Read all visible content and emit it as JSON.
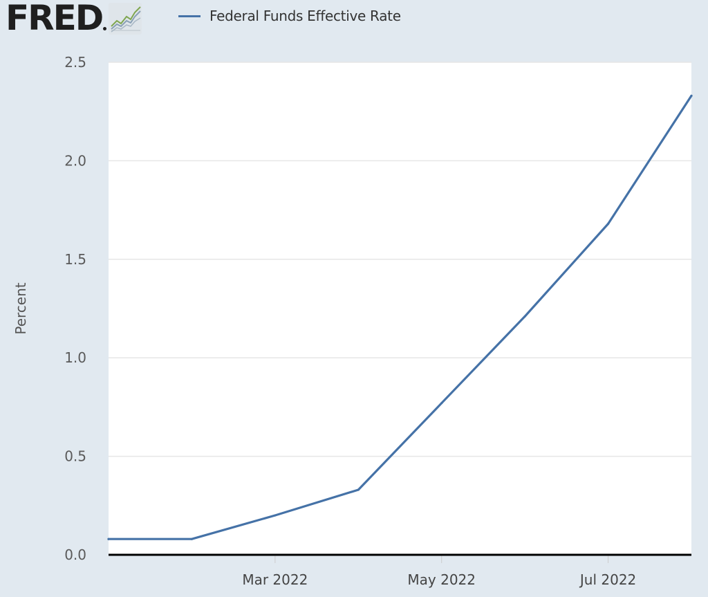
{
  "brand": {
    "wordmark": "FRED",
    "icon": "line-chart-icon"
  },
  "legend": {
    "label": "Federal Funds Effective Rate",
    "color": "#4572a7"
  },
  "colors": {
    "background": "#e1e9f0",
    "plot_background": "#ffffff",
    "series": "#4572a7",
    "grid": "#e6e6e6",
    "zero_line": "#000000"
  },
  "chart_data": {
    "type": "line",
    "title": "",
    "xlabel": "",
    "ylabel": "Percent",
    "ylim": [
      0,
      2.5
    ],
    "xlim": [
      "2022-01",
      "2022-08"
    ],
    "y_ticks": [
      0.0,
      0.5,
      1.0,
      1.5,
      2.0,
      2.5
    ],
    "y_tick_labels": [
      "0.0",
      "0.5",
      "1.0",
      "1.5",
      "2.0",
      "2.5"
    ],
    "x_ticks": [
      "2022-03",
      "2022-05",
      "2022-07"
    ],
    "x_tick_labels": [
      "Mar 2022",
      "May 2022",
      "Jul 2022"
    ],
    "grid": true,
    "legend_position": "top-left",
    "series": [
      {
        "name": "Federal Funds Effective Rate",
        "x": [
          "2022-01",
          "2022-02",
          "2022-03",
          "2022-04",
          "2022-05",
          "2022-06",
          "2022-07",
          "2022-08"
        ],
        "values": [
          0.08,
          0.08,
          0.2,
          0.33,
          0.77,
          1.21,
          1.68,
          2.33
        ]
      }
    ]
  }
}
